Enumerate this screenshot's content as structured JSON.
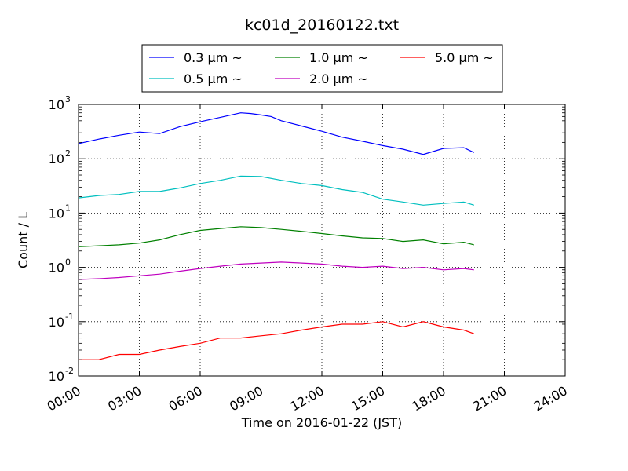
{
  "chart_data": {
    "type": "line",
    "title": "kc01d_20160122.txt",
    "xlabel": "Time on 2016-01-22 (JST)",
    "ylabel": "Count / L",
    "yscale": "log",
    "xlim": [
      "00:00",
      "24:00"
    ],
    "ylim": [
      0.01,
      1000
    ],
    "x_ticks": [
      "00:00",
      "03:00",
      "06:00",
      "09:00",
      "12:00",
      "15:00",
      "18:00",
      "21:00",
      "24:00"
    ],
    "y_ticks": [
      {
        "base": "10",
        "exp": "-2",
        "value": 0.01
      },
      {
        "base": "10",
        "exp": "-1",
        "value": 0.1
      },
      {
        "base": "10",
        "exp": "0",
        "value": 1
      },
      {
        "base": "10",
        "exp": "1",
        "value": 10
      },
      {
        "base": "10",
        "exp": "2",
        "value": 100
      },
      {
        "base": "10",
        "exp": "3",
        "value": 1000
      }
    ],
    "grid": true,
    "legend_position": "top-center (above plot)",
    "series": [
      {
        "name": "0.3 μm ~",
        "color": "#0000ff",
        "x": [
          "00:00",
          "01:00",
          "02:00",
          "03:00",
          "04:00",
          "05:00",
          "06:00",
          "07:00",
          "08:00",
          "08:30",
          "09:00",
          "09:30",
          "10:00",
          "11:00",
          "12:00",
          "13:00",
          "14:00",
          "15:00",
          "16:00",
          "17:00",
          "18:00",
          "19:00",
          "19:30"
        ],
        "y": [
          190,
          230,
          270,
          310,
          290,
          390,
          480,
          580,
          700,
          680,
          640,
          600,
          500,
          400,
          320,
          250,
          210,
          175,
          150,
          120,
          155,
          160,
          130
        ]
      },
      {
        "name": "0.5 μm ~",
        "color": "#00bfbf",
        "x": [
          "00:00",
          "01:00",
          "02:00",
          "03:00",
          "04:00",
          "05:00",
          "06:00",
          "07:00",
          "08:00",
          "09:00",
          "10:00",
          "11:00",
          "12:00",
          "13:00",
          "14:00",
          "15:00",
          "16:00",
          "17:00",
          "18:00",
          "19:00",
          "19:30"
        ],
        "y": [
          19,
          21,
          22,
          25,
          25,
          29,
          35,
          40,
          48,
          47,
          40,
          35,
          32,
          27,
          24,
          18,
          16,
          14,
          15,
          16,
          14
        ]
      },
      {
        "name": "1.0 μm ~",
        "color": "#008000",
        "x": [
          "00:00",
          "01:00",
          "02:00",
          "03:00",
          "04:00",
          "05:00",
          "06:00",
          "07:00",
          "08:00",
          "09:00",
          "10:00",
          "11:00",
          "12:00",
          "13:00",
          "14:00",
          "15:00",
          "16:00",
          "17:00",
          "18:00",
          "19:00",
          "19:30"
        ],
        "y": [
          2.4,
          2.5,
          2.6,
          2.8,
          3.2,
          4.0,
          4.8,
          5.2,
          5.6,
          5.4,
          5.0,
          4.6,
          4.2,
          3.8,
          3.5,
          3.4,
          3.0,
          3.2,
          2.7,
          2.9,
          2.6
        ]
      },
      {
        "name": "2.0 μm ~",
        "color": "#bf00bf",
        "x": [
          "00:00",
          "01:00",
          "02:00",
          "03:00",
          "04:00",
          "05:00",
          "06:00",
          "07:00",
          "08:00",
          "09:00",
          "10:00",
          "11:00",
          "12:00",
          "13:00",
          "14:00",
          "15:00",
          "16:00",
          "17:00",
          "18:00",
          "19:00",
          "19:30"
        ],
        "y": [
          0.6,
          0.62,
          0.65,
          0.7,
          0.75,
          0.85,
          0.95,
          1.05,
          1.15,
          1.2,
          1.25,
          1.2,
          1.15,
          1.05,
          1.0,
          1.05,
          0.95,
          1.0,
          0.9,
          0.95,
          0.9
        ]
      },
      {
        "name": "5.0 μm ~",
        "color": "#ff0000",
        "x": [
          "00:00",
          "01:00",
          "02:00",
          "03:00",
          "04:00",
          "05:00",
          "06:00",
          "07:00",
          "08:00",
          "09:00",
          "10:00",
          "11:00",
          "12:00",
          "13:00",
          "14:00",
          "15:00",
          "16:00",
          "17:00",
          "18:00",
          "19:00",
          "19:30"
        ],
        "y": [
          0.02,
          0.02,
          0.025,
          0.025,
          0.03,
          0.035,
          0.04,
          0.05,
          0.05,
          0.055,
          0.06,
          0.07,
          0.08,
          0.09,
          0.09,
          0.1,
          0.08,
          0.1,
          0.08,
          0.07,
          0.06
        ]
      }
    ]
  }
}
